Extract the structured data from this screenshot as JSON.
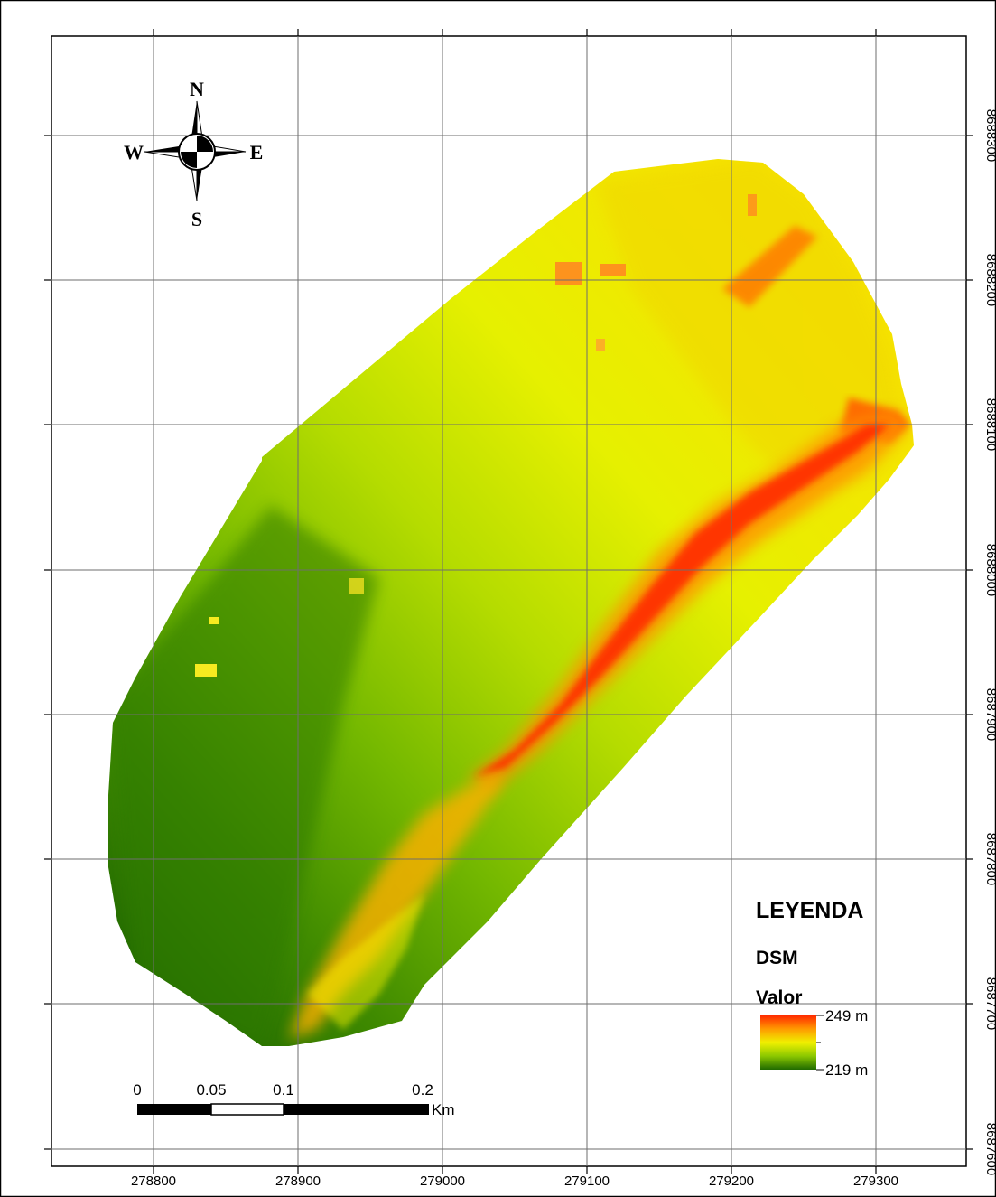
{
  "map": {
    "x_ticks": [
      "278800",
      "278900",
      "279000",
      "279100",
      "279200",
      "279300"
    ],
    "y_ticks": [
      "8688300",
      "8688200",
      "8688100",
      "8688000",
      "8687900",
      "8687800",
      "8687700",
      "8687600"
    ],
    "colors": {
      "high": "#ff2a00",
      "upper": "#ff9a00",
      "mid": "#f0f000",
      "lower": "#8cc800",
      "low": "#1f6a00"
    }
  },
  "compass": {
    "n": "N",
    "s": "S",
    "e": "E",
    "w": "W"
  },
  "legend": {
    "title": "LEYENDA",
    "layer": "DSM",
    "field": "Valor",
    "max_label": "249 m",
    "min_label": "219 m",
    "max_value": 249,
    "min_value": 219
  },
  "scalebar": {
    "labels": [
      "0",
      "0.05",
      "0.1",
      "0.2"
    ],
    "unit": "Km"
  }
}
